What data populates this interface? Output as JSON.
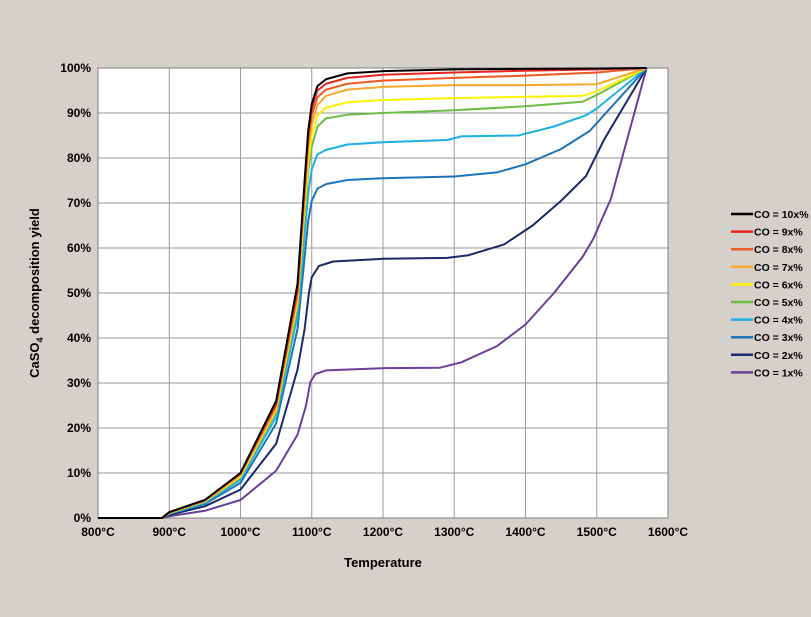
{
  "chart_data": {
    "type": "line",
    "title": "",
    "xlabel": "Temperature",
    "ylabel": "CaSO",
    "ylabel_subscript": "4",
    "ylabel_suffix": " decomposition yield",
    "xlim": [
      800,
      1600
    ],
    "ylim": [
      0,
      100
    ],
    "x_ticks": [
      800,
      900,
      1000,
      1100,
      1200,
      1300,
      1400,
      1500,
      1600
    ],
    "x_tick_labels": [
      "800°C",
      "900°C",
      "1000°C",
      "1100°C",
      "1200°C",
      "1300°C",
      "1400°C",
      "1500°C",
      "1600°C"
    ],
    "y_ticks": [
      0,
      10,
      20,
      30,
      40,
      50,
      60,
      70,
      80,
      90,
      100
    ],
    "y_tick_labels": [
      "0%",
      "10%",
      "20%",
      "30%",
      "40%",
      "50%",
      "60%",
      "70%",
      "80%",
      "90%",
      "100%"
    ],
    "grid": true,
    "legend_position": "right",
    "series": [
      {
        "name": "CO = 10x%",
        "color": "#000000",
        "points": [
          [
            800,
            0
          ],
          [
            890,
            0
          ],
          [
            900,
            1.3
          ],
          [
            950,
            4
          ],
          [
            1000,
            10
          ],
          [
            1050,
            26
          ],
          [
            1080,
            52
          ],
          [
            1090,
            75
          ],
          [
            1095,
            86
          ],
          [
            1100,
            92
          ],
          [
            1108,
            96
          ],
          [
            1120,
            97.5
          ],
          [
            1150,
            98.8
          ],
          [
            1200,
            99.3
          ],
          [
            1300,
            99.7
          ],
          [
            1400,
            99.8
          ],
          [
            1500,
            99.9
          ],
          [
            1570,
            100
          ]
        ]
      },
      {
        "name": "CO = 9x%",
        "color": "#e8251e",
        "points": [
          [
            800,
            0
          ],
          [
            890,
            0
          ],
          [
            900,
            1.3
          ],
          [
            950,
            4
          ],
          [
            1000,
            10
          ],
          [
            1050,
            25.5
          ],
          [
            1080,
            51
          ],
          [
            1090,
            74
          ],
          [
            1095,
            85
          ],
          [
            1100,
            91
          ],
          [
            1108,
            95
          ],
          [
            1120,
            96.5
          ],
          [
            1150,
            97.8
          ],
          [
            1200,
            98.5
          ],
          [
            1300,
            99
          ],
          [
            1400,
            99.4
          ],
          [
            1500,
            99.7
          ],
          [
            1570,
            100
          ]
        ]
      },
      {
        "name": "CO = 8x%",
        "color": "#f15a24",
        "points": [
          [
            800,
            0
          ],
          [
            890,
            0
          ],
          [
            900,
            1.2
          ],
          [
            950,
            3.9
          ],
          [
            1000,
            9.8
          ],
          [
            1050,
            25
          ],
          [
            1080,
            50
          ],
          [
            1090,
            73
          ],
          [
            1095,
            84
          ],
          [
            1100,
            89.5
          ],
          [
            1108,
            93.5
          ],
          [
            1120,
            95.2
          ],
          [
            1150,
            96.5
          ],
          [
            1200,
            97.2
          ],
          [
            1300,
            97.8
          ],
          [
            1400,
            98.3
          ],
          [
            1500,
            99
          ],
          [
            1570,
            100
          ]
        ]
      },
      {
        "name": "CO = 7x%",
        "color": "#f7a92a",
        "points": [
          [
            800,
            0
          ],
          [
            890,
            0
          ],
          [
            900,
            1.2
          ],
          [
            950,
            3.8
          ],
          [
            1000,
            9.5
          ],
          [
            1050,
            24.5
          ],
          [
            1080,
            49
          ],
          [
            1090,
            71
          ],
          [
            1095,
            82
          ],
          [
            1100,
            87.5
          ],
          [
            1108,
            91.8
          ],
          [
            1120,
            93.8
          ],
          [
            1150,
            95.2
          ],
          [
            1200,
            95.8
          ],
          [
            1300,
            96.2
          ],
          [
            1400,
            96.2
          ],
          [
            1500,
            96.4
          ],
          [
            1570,
            100
          ]
        ]
      },
      {
        "name": "CO = 6x%",
        "color": "#fff200",
        "points": [
          [
            800,
            0
          ],
          [
            890,
            0
          ],
          [
            900,
            1.1
          ],
          [
            950,
            3.7
          ],
          [
            1000,
            9.2
          ],
          [
            1050,
            24
          ],
          [
            1080,
            48
          ],
          [
            1090,
            69
          ],
          [
            1095,
            79
          ],
          [
            1100,
            85
          ],
          [
            1108,
            89.5
          ],
          [
            1120,
            91.2
          ],
          [
            1150,
            92.4
          ],
          [
            1200,
            92.9
          ],
          [
            1300,
            93.3
          ],
          [
            1400,
            93.6
          ],
          [
            1480,
            93.8
          ],
          [
            1500,
            94.8
          ],
          [
            1570,
            100
          ]
        ]
      },
      {
        "name": "CO = 5x%",
        "color": "#6cbd45",
        "points": [
          [
            800,
            0
          ],
          [
            890,
            0
          ],
          [
            900,
            1.1
          ],
          [
            950,
            3.6
          ],
          [
            1000,
            9
          ],
          [
            1050,
            23.5
          ],
          [
            1080,
            47
          ],
          [
            1090,
            67
          ],
          [
            1095,
            77
          ],
          [
            1100,
            82.5
          ],
          [
            1108,
            87
          ],
          [
            1120,
            88.8
          ],
          [
            1150,
            89.6
          ],
          [
            1200,
            90
          ],
          [
            1300,
            90.6
          ],
          [
            1400,
            91.5
          ],
          [
            1480,
            92.5
          ],
          [
            1500,
            94
          ],
          [
            1570,
            100
          ]
        ]
      },
      {
        "name": "CO = 4x%",
        "color": "#1fb0e6",
        "points": [
          [
            800,
            0
          ],
          [
            890,
            0
          ],
          [
            900,
            1
          ],
          [
            950,
            3.4
          ],
          [
            1000,
            8.5
          ],
          [
            1050,
            22.5
          ],
          [
            1080,
            45
          ],
          [
            1090,
            63
          ],
          [
            1095,
            72
          ],
          [
            1100,
            77.5
          ],
          [
            1108,
            80.8
          ],
          [
            1120,
            81.8
          ],
          [
            1150,
            83
          ],
          [
            1200,
            83.5
          ],
          [
            1290,
            84
          ],
          [
            1310,
            84.8
          ],
          [
            1390,
            85
          ],
          [
            1440,
            87
          ],
          [
            1485,
            89.5
          ],
          [
            1500,
            91
          ],
          [
            1570,
            100
          ]
        ]
      },
      {
        "name": "CO = 3x%",
        "color": "#1c75bc",
        "points": [
          [
            800,
            0
          ],
          [
            890,
            0
          ],
          [
            900,
            0.9
          ],
          [
            950,
            3.1
          ],
          [
            1000,
            7.8
          ],
          [
            1050,
            21
          ],
          [
            1080,
            42
          ],
          [
            1090,
            58
          ],
          [
            1095,
            66
          ],
          [
            1100,
            70.5
          ],
          [
            1108,
            73.2
          ],
          [
            1120,
            74.2
          ],
          [
            1150,
            75.1
          ],
          [
            1200,
            75.5
          ],
          [
            1300,
            75.9
          ],
          [
            1360,
            76.8
          ],
          [
            1400,
            78.6
          ],
          [
            1450,
            82
          ],
          [
            1490,
            86
          ],
          [
            1570,
            100
          ]
        ]
      },
      {
        "name": "CO = 2x%",
        "color": "#1b2a6b",
        "points": [
          [
            800,
            0
          ],
          [
            890,
            0
          ],
          [
            900,
            0.7
          ],
          [
            950,
            2.6
          ],
          [
            1000,
            6.3
          ],
          [
            1050,
            16.5
          ],
          [
            1080,
            33
          ],
          [
            1090,
            42
          ],
          [
            1096,
            50
          ],
          [
            1100,
            53.5
          ],
          [
            1110,
            56
          ],
          [
            1130,
            57
          ],
          [
            1200,
            57.6
          ],
          [
            1290,
            57.8
          ],
          [
            1320,
            58.4
          ],
          [
            1370,
            60.8
          ],
          [
            1410,
            65
          ],
          [
            1450,
            70.5
          ],
          [
            1485,
            76
          ],
          [
            1510,
            84
          ],
          [
            1570,
            100
          ]
        ]
      },
      {
        "name": "CO = 1x%",
        "color": "#6e3f99",
        "points": [
          [
            800,
            0
          ],
          [
            890,
            0
          ],
          [
            900,
            0.4
          ],
          [
            950,
            1.6
          ],
          [
            1000,
            4
          ],
          [
            1050,
            10.5
          ],
          [
            1080,
            18.5
          ],
          [
            1092,
            25
          ],
          [
            1098,
            30.2
          ],
          [
            1105,
            32
          ],
          [
            1120,
            32.8
          ],
          [
            1200,
            33.3
          ],
          [
            1280,
            33.4
          ],
          [
            1310,
            34.6
          ],
          [
            1360,
            38.2
          ],
          [
            1400,
            43
          ],
          [
            1440,
            50
          ],
          [
            1480,
            58
          ],
          [
            1495,
            62
          ],
          [
            1520,
            71
          ],
          [
            1570,
            100
          ]
        ]
      }
    ]
  }
}
